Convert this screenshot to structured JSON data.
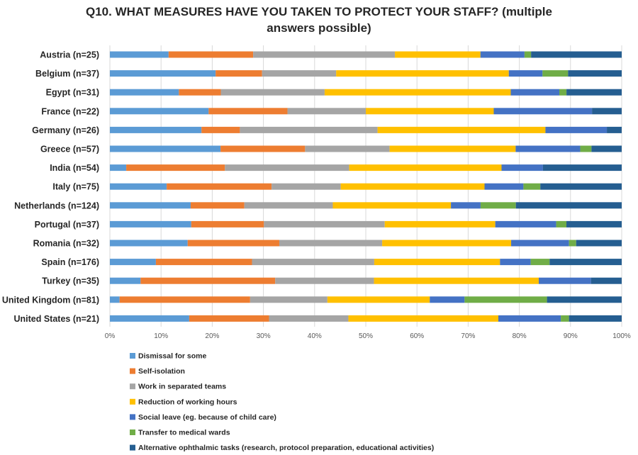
{
  "chart_data": {
    "type": "bar",
    "orientation": "horizontal",
    "stacked": "100%",
    "title": "Q10. WHAT MEASURES HAVE YOU TAKEN TO PROTECT YOUR STAFF? (multiple answers possible)",
    "title_lines": [
      "Q10. WHAT MEASURES HAVE YOU TAKEN TO PROTECT YOUR STAFF? (multiple",
      "answers possible)"
    ],
    "categories": [
      "Austria (n=25)",
      "Belgium (n=37)",
      "Egypt (n=31)",
      "France (n=22)",
      "Germany (n=26)",
      "Greece (n=57)",
      "India (n=54)",
      "Italy (n=75)",
      "Netherlands (n=124)",
      "Portugal (n=37)",
      "Romania (n=32)",
      "Spain (n=176)",
      "Turkey (n=35)",
      "United Kingdom (n=81)",
      "United States (n=21)"
    ],
    "xlim": [
      0,
      100
    ],
    "xticks": [
      "0%",
      "10%",
      "20%",
      "30%",
      "40%",
      "50%",
      "60%",
      "70%",
      "80%",
      "90%",
      "100%"
    ],
    "grid": true,
    "legend_position": "bottom",
    "series": [
      {
        "name": "Dismissal for some",
        "color": "#5B9BD5",
        "values": [
          11.6,
          20.7,
          13.5,
          19.3,
          17.9,
          21.6,
          3.2,
          11.1,
          15.8,
          15.9,
          15.2,
          9.0,
          6.0,
          1.9,
          15.5
        ]
      },
      {
        "name": "Self-isolation",
        "color": "#ED7D31",
        "values": [
          16.7,
          9.1,
          8.2,
          15.4,
          7.5,
          16.5,
          19.3,
          20.5,
          10.5,
          14.2,
          17.9,
          18.8,
          26.3,
          25.5,
          15.6
        ]
      },
      {
        "name": "Work in separated teams",
        "color": "#A5A5A5",
        "values": [
          28.0,
          14.5,
          20.3,
          15.3,
          26.9,
          16.5,
          24.3,
          13.5,
          17.3,
          23.6,
          20.1,
          23.9,
          19.3,
          15.1,
          15.5
        ]
      },
      {
        "name": "Reduction of working hours",
        "color": "#FFC000",
        "values": [
          16.9,
          33.8,
          36.4,
          25.0,
          32.8,
          24.6,
          29.8,
          28.1,
          23.1,
          21.6,
          25.2,
          24.6,
          32.2,
          20.0,
          29.3
        ]
      },
      {
        "name": "Social leave (eg. because of child care)",
        "color": "#4472C4",
        "values": [
          8.7,
          6.6,
          9.5,
          19.2,
          12.0,
          12.6,
          8.1,
          7.6,
          5.8,
          11.9,
          11.3,
          6.0,
          10.2,
          6.8,
          12.2
        ]
      },
      {
        "name": "Transfer to medical wards",
        "color": "#70AD47",
        "values": [
          1.3,
          5.0,
          1.4,
          0.0,
          0.0,
          2.2,
          0.0,
          3.3,
          6.9,
          2.0,
          1.4,
          3.7,
          0.0,
          16.1,
          1.6
        ]
      },
      {
        "name": "Alternative ophthalmic tasks (research, protocol preparation, educational activities)",
        "color": "#255E91",
        "values": [
          17.9,
          10.5,
          10.8,
          5.8,
          2.9,
          5.9,
          15.4,
          15.9,
          20.7,
          10.8,
          8.9,
          14.1,
          6.0,
          14.6,
          10.3
        ]
      }
    ]
  }
}
